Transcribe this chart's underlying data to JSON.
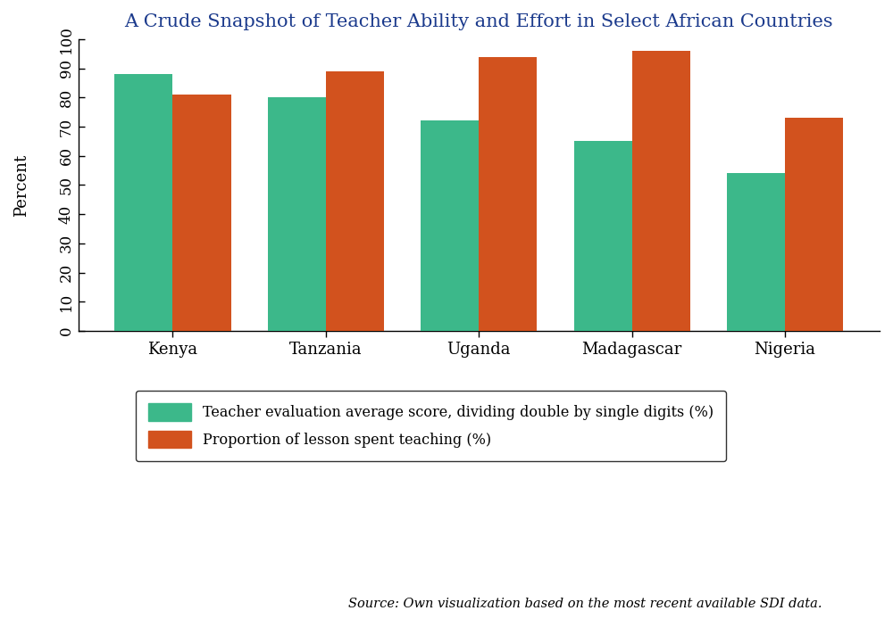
{
  "title": "A Crude Snapshot of Teacher Ability and Effort in Select African Countries",
  "countries": [
    "Kenya",
    "Tanzania",
    "Uganda",
    "Madagascar",
    "Nigeria"
  ],
  "teacher_eval": [
    88,
    80,
    72,
    65,
    54
  ],
  "lesson_teaching": [
    81,
    89,
    94,
    96,
    73
  ],
  "color_eval": "#3CB88A",
  "color_lesson": "#D2521E",
  "ylabel": "Percent",
  "ylim": [
    0,
    100
  ],
  "yticks": [
    0,
    10,
    20,
    30,
    40,
    50,
    60,
    70,
    80,
    90,
    100
  ],
  "legend_eval": "Teacher evaluation average score, dividing double by single digits (%)",
  "legend_lesson": "Proportion of lesson spent teaching (%)",
  "source_text": "Source: Own visualization based on the most recent available SDI data.",
  "bar_width": 0.38,
  "background_color": "#FFFFFF",
  "title_color": "#1B3A8C",
  "title_fontsize": 15,
  "axis_label_fontsize": 13,
  "tick_fontsize": 12,
  "legend_fontsize": 11.5,
  "source_fontsize": 10.5
}
